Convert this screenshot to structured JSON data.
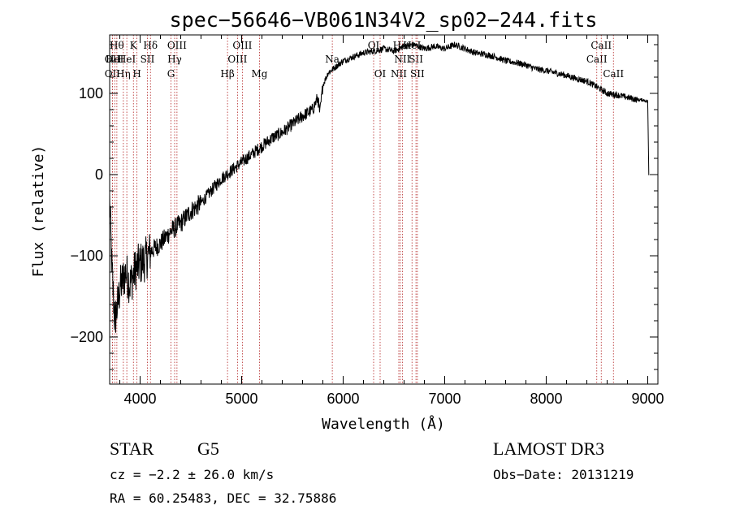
{
  "chart_data": {
    "type": "line",
    "title": "spec−56646−VB061N34V2_sp02−244.fits",
    "xlabel": "Wavelength (Å)",
    "ylabel": "Flux (relative)",
    "xlim": [
      3700,
      9100
    ],
    "ylim": [
      -258,
      172
    ],
    "xticks": [
      4000,
      5000,
      6000,
      7000,
      8000,
      9000
    ],
    "xtick_labels": [
      "4000",
      "5000",
      "6000",
      "7000",
      "8000",
      "9000"
    ],
    "yticks": [
      -200,
      -100,
      0,
      100
    ],
    "ytick_labels": [
      "−200",
      "−100",
      "0",
      "100"
    ],
    "grid": false,
    "spectrum": {
      "x": [
        3700,
        3720,
        3750,
        3780,
        3800,
        3830,
        3860,
        3900,
        3930,
        3960,
        4000,
        4050,
        4100,
        4150,
        4200,
        4300,
        4400,
        4500,
        4600,
        4700,
        4800,
        4900,
        5000,
        5100,
        5200,
        5300,
        5400,
        5500,
        5600,
        5700,
        5750,
        5770,
        5800,
        5850,
        5900,
        5950,
        6000,
        6100,
        6200,
        6300,
        6400,
        6500,
        6600,
        6700,
        6800,
        6900,
        7000,
        7100,
        7200,
        7300,
        7400,
        7500,
        7600,
        7700,
        7800,
        7900,
        8000,
        8100,
        8200,
        8300,
        8400,
        8500,
        8600,
        8700,
        8800,
        8900,
        8950,
        9000,
        9010
      ],
      "y": [
        -30,
        -110,
        -180,
        -160,
        -140,
        -130,
        -120,
        -135,
        -125,
        -115,
        -110,
        -105,
        -95,
        -90,
        -85,
        -70,
        -60,
        -45,
        -35,
        -20,
        -5,
        5,
        15,
        25,
        35,
        45,
        52,
        62,
        72,
        80,
        95,
        75,
        110,
        125,
        130,
        135,
        140,
        145,
        150,
        152,
        155,
        152,
        158,
        160,
        155,
        158,
        155,
        160,
        155,
        150,
        148,
        145,
        140,
        138,
        135,
        130,
        128,
        125,
        122,
        118,
        115,
        108,
        100,
        98,
        95,
        92,
        92,
        90,
        0
      ],
      "color": "#000000"
    },
    "lines": [
      {
        "wave": 3727,
        "label": "OII",
        "row": 2
      },
      {
        "wave": 3727,
        "label": "OII",
        "row": 3
      },
      {
        "wave": 3750,
        "label": "HeI",
        "row": 2
      },
      {
        "wave": 3771,
        "label": "Hθ",
        "row": 1
      },
      {
        "wave": 3835,
        "label": "Hη",
        "row": 3
      },
      {
        "wave": 3869,
        "label": "HeI",
        "row": 2
      },
      {
        "wave": 3934,
        "label": "K",
        "row": 1
      },
      {
        "wave": 3969,
        "label": "H",
        "row": 3
      },
      {
        "wave": 4072,
        "label": "SII",
        "row": 2
      },
      {
        "wave": 4102,
        "label": "Hδ",
        "row": 1
      },
      {
        "wave": 4304,
        "label": "G",
        "row": 3
      },
      {
        "wave": 4340,
        "label": "Hγ",
        "row": 2
      },
      {
        "wave": 4363,
        "label": "OIII",
        "row": 1
      },
      {
        "wave": 4861,
        "label": "Hβ",
        "row": 3
      },
      {
        "wave": 4959,
        "label": "OIII",
        "row": 2
      },
      {
        "wave": 5007,
        "label": "OIII",
        "row": 1
      },
      {
        "wave": 5176,
        "label": "Mg",
        "row": 3
      },
      {
        "wave": 5893,
        "label": "Na",
        "row": 2
      },
      {
        "wave": 6300,
        "label": "OI",
        "row": 1
      },
      {
        "wave": 6364,
        "label": "OI",
        "row": 3
      },
      {
        "wave": 6548,
        "label": "NII",
        "row": 3
      },
      {
        "wave": 6563,
        "label": "Hα",
        "row": 1
      },
      {
        "wave": 6583,
        "label": "NII",
        "row": 2
      },
      {
        "wave": 6678,
        "label": "HeI",
        "row": 1
      },
      {
        "wave": 6717,
        "label": "SII",
        "row": 2
      },
      {
        "wave": 6731,
        "label": "SII",
        "row": 3
      },
      {
        "wave": 8498,
        "label": "CaII",
        "row": 2
      },
      {
        "wave": 8542,
        "label": "CaII",
        "row": 1
      },
      {
        "wave": 8662,
        "label": "CaII",
        "row": 3
      }
    ]
  },
  "info": {
    "class": "STAR",
    "subclass": "G5",
    "survey": "LAMOST DR3",
    "redshift": "cz = −2.2 ± 26.0 km/s",
    "obs_date": "Obs−Date: 20131219",
    "coords": "RA =  60.25483, DEC =  32.75886"
  }
}
